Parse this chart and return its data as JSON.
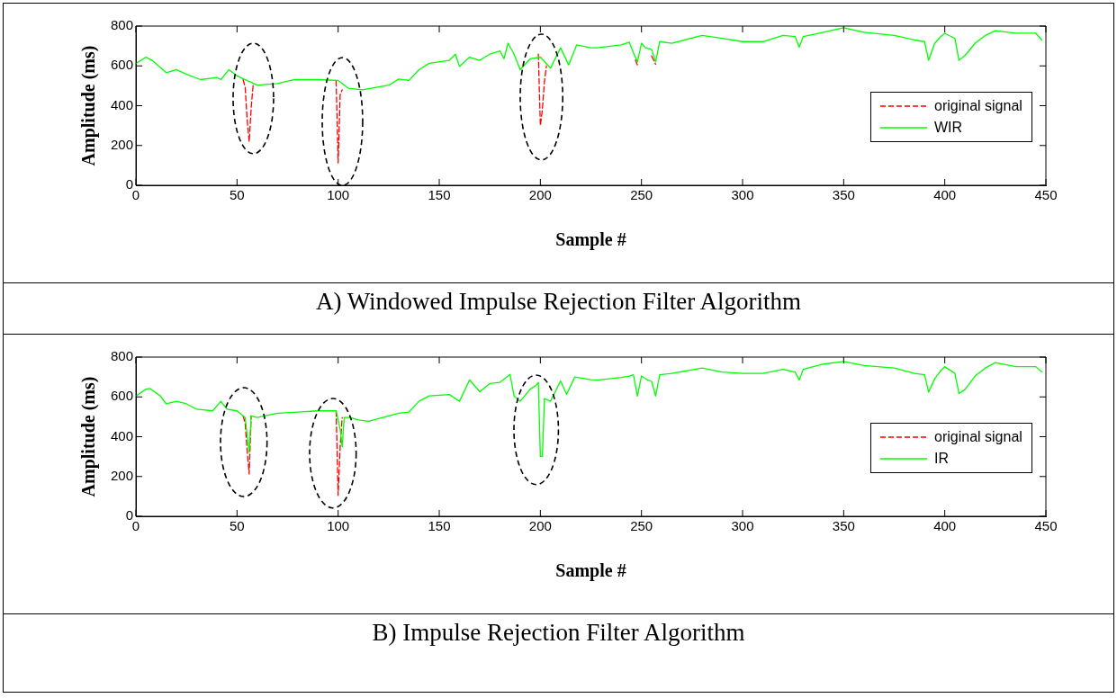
{
  "chart_data": [
    {
      "type": "line",
      "title": "A) Windowed Impulse Rejection Filter Algorithm",
      "xlabel": "Sample #",
      "ylabel": "Amplitude (ms)",
      "xlim": [
        0,
        450
      ],
      "xticks": [
        0,
        50,
        100,
        150,
        200,
        250,
        300,
        350,
        400,
        450
      ],
      "ylim": [
        0,
        800
      ],
      "yticks": [
        0,
        200,
        400,
        600,
        800
      ],
      "grid": false,
      "legend": "right",
      "marker": "none",
      "series": [
        {
          "name": "original signal",
          "color": "#ff0000",
          "line_style": "dashed",
          "x": [
            53,
            54,
            55,
            56,
            57,
            58,
            80,
            99,
            100,
            101,
            102,
            150,
            199,
            200,
            201,
            202,
            203,
            225,
            247,
            248,
            252,
            255,
            257
          ],
          "values": [
            531,
            495,
            330,
            219,
            390,
            510,
            null,
            525,
            112,
            456,
            480,
            null,
            659,
            300,
            380,
            520,
            600,
            null,
            630,
            605,
            null,
            650,
            608
          ]
        },
        {
          "name": "WIR",
          "color": "#00ff00",
          "line_style": "solid",
          "x": [
            0,
            5,
            8,
            15,
            20,
            25,
            32,
            40,
            42,
            46,
            50,
            60,
            70,
            78,
            90,
            100,
            105,
            112,
            125,
            130,
            135,
            140,
            145,
            155,
            158,
            160,
            165,
            170,
            175,
            180,
            182,
            184,
            187,
            190,
            195,
            200,
            205,
            210,
            214,
            218,
            225,
            228,
            240,
            244,
            246,
            248,
            250,
            252,
            255,
            257,
            259,
            265,
            280,
            290,
            300,
            310,
            320,
            326,
            328,
            330,
            340,
            350,
            360,
            375,
            385,
            390,
            392,
            395,
            398,
            400,
            405,
            407,
            410,
            415,
            420,
            425,
            435,
            445,
            448
          ],
          "values": [
            612,
            644,
            628,
            566,
            581,
            558,
            531,
            542,
            531,
            581,
            550,
            503,
            511,
            531,
            531,
            527,
            488,
            480,
            503,
            534,
            527,
            581,
            613,
            628,
            659,
            597,
            644,
            628,
            659,
            675,
            636,
            714,
            659,
            581,
            636,
            644,
            589,
            691,
            605,
            706,
            691,
            691,
            706,
            719,
            667,
            620,
            714,
            691,
            683,
            620,
            722,
            714,
            753,
            738,
            722,
            722,
            753,
            747,
            694,
            747,
            769,
            792,
            769,
            753,
            730,
            722,
            628,
            714,
            747,
            764,
            738,
            628,
            652,
            714,
            753,
            777,
            764,
            764,
            730
          ]
        }
      ]
    },
    {
      "type": "line",
      "title": "B) Impulse Rejection Filter Algorithm",
      "xlabel": "Sample #",
      "ylabel": "Amplitude (ms)",
      "xlim": [
        0,
        450
      ],
      "xticks": [
        0,
        50,
        100,
        150,
        200,
        250,
        300,
        350,
        400,
        450
      ],
      "ylim": [
        0,
        800
      ],
      "yticks": [
        0,
        200,
        400,
        600,
        800
      ],
      "grid": false,
      "legend": "right",
      "marker": "none",
      "series": [
        {
          "name": "original signal",
          "color": "#ff0000",
          "line_style": "dashed",
          "x": [
            53,
            54,
            55,
            56,
            57,
            80,
            99,
            100,
            101,
            102
          ],
          "values": [
            504,
            470,
            330,
            213,
            504,
            null,
            530,
            105,
            349,
            497
          ]
        },
        {
          "name": "IR",
          "color": "#00ff00",
          "line_style": "solid",
          "x": [
            0,
            5,
            7,
            12,
            15,
            20,
            25,
            30,
            38,
            42,
            45,
            50,
            53,
            54,
            55,
            56,
            57,
            60,
            70,
            80,
            90,
            99,
            100,
            101,
            102,
            103,
            106,
            110,
            115,
            125,
            130,
            135,
            140,
            145,
            155,
            160,
            165,
            170,
            175,
            180,
            185,
            187,
            190,
            195,
            198,
            199,
            200,
            201,
            202,
            205,
            210,
            213,
            217,
            225,
            229,
            240,
            244,
            246,
            248,
            250,
            253,
            255,
            257,
            259,
            265,
            280,
            290,
            300,
            310,
            320,
            326,
            328,
            330,
            340,
            350,
            360,
            375,
            385,
            390,
            392,
            395,
            398,
            400,
            405,
            407,
            410,
            415,
            420,
            425,
            435,
            445,
            448
          ],
          "values": [
            605,
            639,
            642,
            605,
            565,
            578,
            565,
            538,
            530,
            578,
            538,
            530,
            504,
            497,
            409,
            322,
            504,
            497,
            518,
            524,
            530,
            530,
            484,
            436,
            349,
            497,
            497,
            484,
            477,
            504,
            518,
            524,
            578,
            605,
            612,
            578,
            686,
            626,
            667,
            673,
            713,
            605,
            578,
            639,
            659,
            673,
            301,
            301,
            592,
            578,
            680,
            612,
            700,
            686,
            685,
            698,
            705,
            711,
            604,
            705,
            685,
            678,
            604,
            711,
            718,
            745,
            725,
            718,
            718,
            738,
            725,
            685,
            738,
            765,
            778,
            758,
            745,
            718,
            711,
            624,
            691,
            732,
            752,
            718,
            617,
            638,
            705,
            745,
            772,
            752,
            752,
            725
          ]
        }
      ]
    }
  ]
}
